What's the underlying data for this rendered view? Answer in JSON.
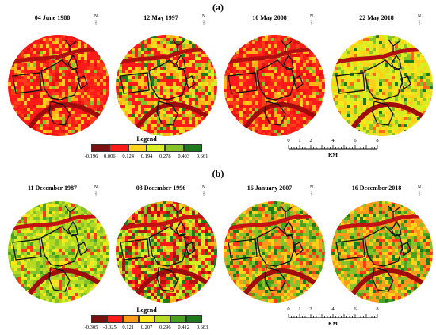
{
  "panels": [
    {
      "label": "(a)",
      "maps": [
        {
          "date": "04 June 1988",
          "palette": "red"
        },
        {
          "date": "12 May 1997",
          "palette": "redmix"
        },
        {
          "date": "10 May 2008",
          "palette": "red"
        },
        {
          "date": "22 May 2018",
          "palette": "yellow"
        }
      ],
      "legend": {
        "title": "Legend",
        "ticks": [
          "-0.196",
          "0.006",
          "0.124",
          "0.194",
          "0.278",
          "0.403",
          "0.661"
        ],
        "colors": [
          "#7a1010",
          "#ff1a1a",
          "#ffd21a",
          "#d6ee22",
          "#86c22a",
          "#1e7a1e"
        ]
      },
      "scale": {
        "ticks": [
          "0",
          "1",
          "2",
          "4",
          "6",
          "8"
        ],
        "unit": "KM"
      }
    },
    {
      "label": "(b)",
      "maps": [
        {
          "date": "11 December 1987",
          "palette": "green"
        },
        {
          "date": "03 December 1996",
          "palette": "redgreen"
        },
        {
          "date": "16 January 2007",
          "palette": "orange"
        },
        {
          "date": "16 December 2018",
          "palette": "orange"
        }
      ],
      "legend": {
        "title": "Legend",
        "ticks": [
          "-0.305",
          "-0.025",
          "0.121",
          "0.207",
          "0.296",
          "0.412",
          "0.683"
        ],
        "colors": [
          "#7a1010",
          "#ff1a1a",
          "#ff9a1a",
          "#ffe51a",
          "#b6da22",
          "#4aa21e",
          "#1e7a1e"
        ]
      },
      "scale": {
        "ticks": [
          "0",
          "1",
          "2",
          "4",
          "6",
          "8"
        ],
        "unit": "KM"
      }
    }
  ],
  "north_symbol": "N"
}
